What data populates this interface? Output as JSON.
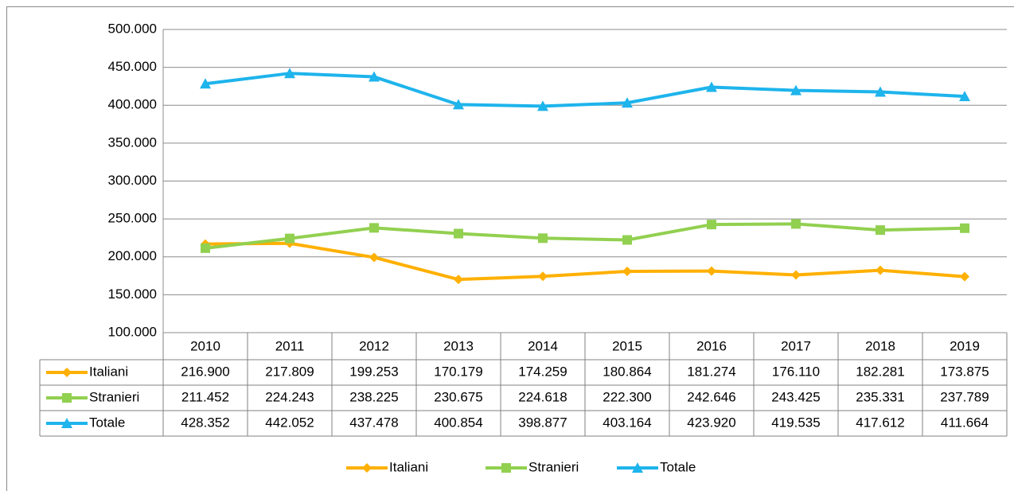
{
  "chart_data": {
    "type": "line",
    "categories": [
      "2010",
      "2011",
      "2012",
      "2013",
      "2014",
      "2015",
      "2016",
      "2017",
      "2018",
      "2019"
    ],
    "series": [
      {
        "name": "Italiani",
        "color": "#ffb000",
        "marker": "diamond",
        "values": [
          216900,
          217809,
          199253,
          170179,
          174259,
          180864,
          181274,
          176110,
          182281,
          173875
        ],
        "value_labels": [
          "216.900",
          "217.809",
          "199.253",
          "170.179",
          "174.259",
          "180.864",
          "181.274",
          "176.110",
          "182.281",
          "173.875"
        ]
      },
      {
        "name": "Stranieri",
        "color": "#92d050",
        "marker": "square",
        "values": [
          211452,
          224243,
          238225,
          230675,
          224618,
          222300,
          242646,
          243425,
          235331,
          237789
        ],
        "value_labels": [
          "211.452",
          "224.243",
          "238.225",
          "230.675",
          "224.618",
          "222.300",
          "242.646",
          "243.425",
          "235.331",
          "237.789"
        ]
      },
      {
        "name": "Totale",
        "color": "#1eb4ec",
        "marker": "triangle",
        "values": [
          428352,
          442052,
          437478,
          400854,
          398877,
          403164,
          423920,
          419535,
          417612,
          411664
        ],
        "value_labels": [
          "428.352",
          "442.052",
          "437.478",
          "400.854",
          "398.877",
          "403.164",
          "423.920",
          "419.535",
          "417.612",
          "411.664"
        ]
      }
    ],
    "ylim": [
      100000,
      500000
    ],
    "yticks": [
      {
        "value": 100000,
        "label": "100.000"
      },
      {
        "value": 150000,
        "label": "150.000"
      },
      {
        "value": 200000,
        "label": "200.000"
      },
      {
        "value": 250000,
        "label": "250.000"
      },
      {
        "value": 300000,
        "label": "300.000"
      },
      {
        "value": 350000,
        "label": "350.000"
      },
      {
        "value": 400000,
        "label": "400.000"
      },
      {
        "value": 450000,
        "label": "450.000"
      },
      {
        "value": 500000,
        "label": "500.000"
      }
    ],
    "grid": true,
    "data_table": true,
    "legend": "bottom"
  }
}
